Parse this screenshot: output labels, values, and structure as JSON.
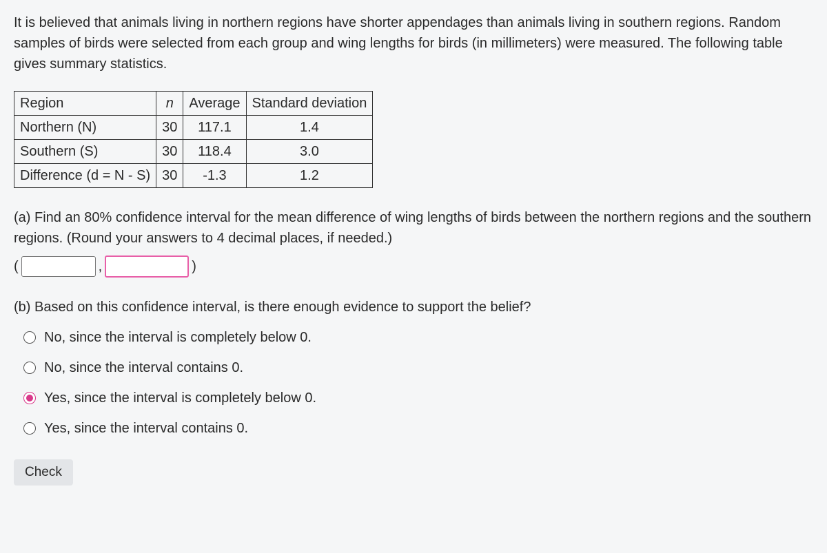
{
  "intro": "It is believed that animals living in northern regions have shorter appendages than animals living in southern regions. Random samples of birds were selected from each group and wing lengths for birds (in millimeters) were measured. The following table gives summary statistics.",
  "table": {
    "headers": {
      "region": "Region",
      "n": "n",
      "avg": "Average",
      "sd": "Standard deviation"
    },
    "rows": [
      {
        "label": "Northern (N)",
        "n": "30",
        "avg": "117.1",
        "sd": "1.4"
      },
      {
        "label": "Southern (S)",
        "n": "30",
        "avg": "118.4",
        "sd": "3.0"
      },
      {
        "label": "Difference (d = N - S)",
        "n": "30",
        "avg": "-1.3",
        "sd": "1.2"
      }
    ]
  },
  "partA": {
    "text": "(a) Find an 80% confidence interval for the mean difference of wing lengths of birds between the northern regions and the southern regions. (Round your answers to 4 decimal places, if needed.)",
    "open": "(",
    "comma": ",",
    "close": ")",
    "lower_value": "",
    "upper_value": ""
  },
  "partB": {
    "text": "(b) Based on this confidence interval, is there enough evidence to support the belief?",
    "options": [
      "No, since the interval is completely below 0.",
      "No, since the interval contains 0.",
      "Yes, since the interval is completely below 0.",
      "Yes, since the interval contains 0."
    ],
    "selected_index": 2
  },
  "check_label": "Check"
}
